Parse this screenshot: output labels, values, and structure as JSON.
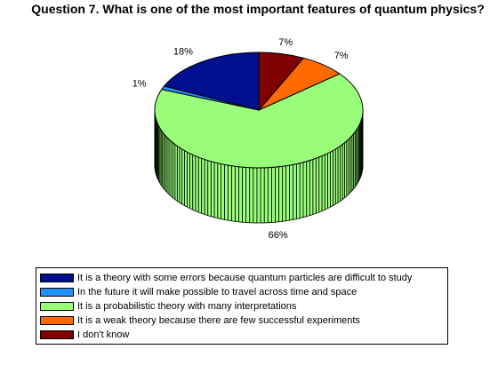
{
  "chart_data": {
    "type": "pie",
    "title": "Question 7. What is one of the most important features of quantum physics?",
    "slices": [
      {
        "label": "It is a theory with some errors because quantum particles are difficult to study",
        "value": 18,
        "pct_label": "18%",
        "color": "#000f8f"
      },
      {
        "label": "In the future it will make possible to travel across time and space",
        "value": 1,
        "pct_label": "1%",
        "color": "#1e90ff"
      },
      {
        "label": "It is a probabilistic theory with many interpretations",
        "value": 66,
        "pct_label": "66%",
        "color": "#99ff7a"
      },
      {
        "label": "It is a weak theory because there are few successful experiments",
        "value": 7,
        "pct_label": "7%",
        "color": "#ff6a00"
      },
      {
        "label": "I don't know",
        "value": 7,
        "pct_label": "7%",
        "color": "#800000"
      }
    ],
    "legend_position": "bottom",
    "style": "3d-pie"
  }
}
